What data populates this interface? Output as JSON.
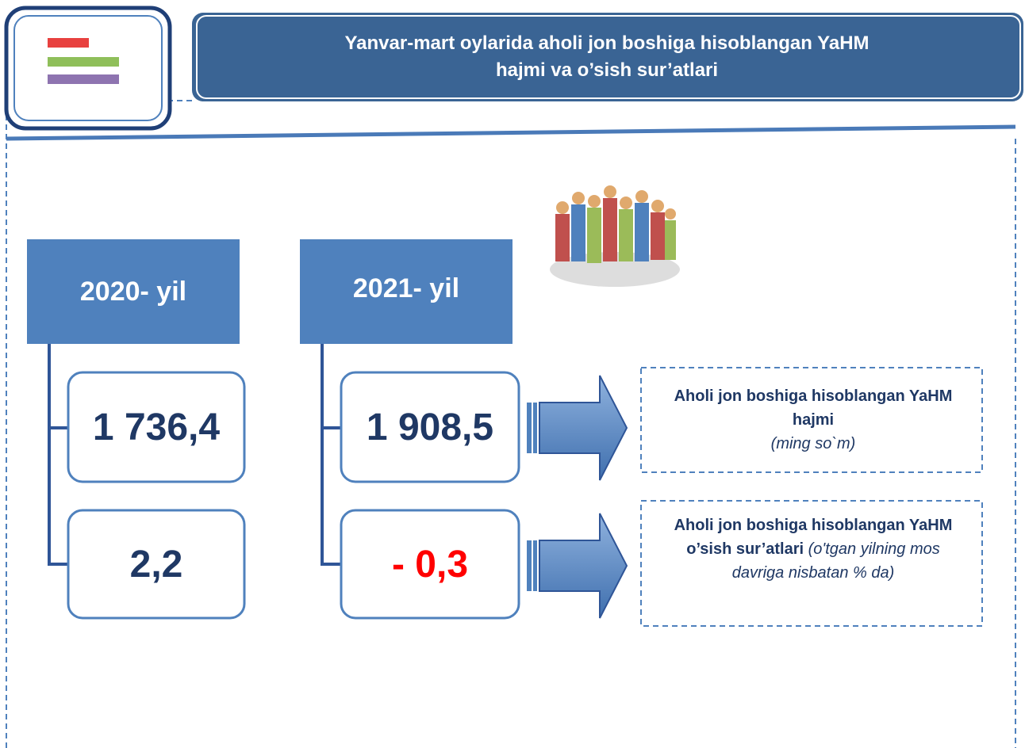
{
  "header": {
    "title": "Yanvar-mart oylarida aholi jon boshiga hisoblangan YaHM hajmi va o’sish sur’atlari"
  },
  "columns": [
    {
      "year": "2020- yil",
      "values": [
        "1 736,4",
        "2,2"
      ]
    },
    {
      "year": "2021- yil",
      "values": [
        "1 908,5",
        "- 0,3"
      ]
    }
  ],
  "legend": [
    {
      "title": "Aholi jon boshiga hisoblangan YaHM hajmi",
      "note": "(ming so`m)"
    },
    {
      "title": "Aholi jon boshiga hisoblangan YaHM o’sish sur’atlari",
      "note": "(o'tgan yilning mos davriga nisbatan % da)"
    }
  ]
}
